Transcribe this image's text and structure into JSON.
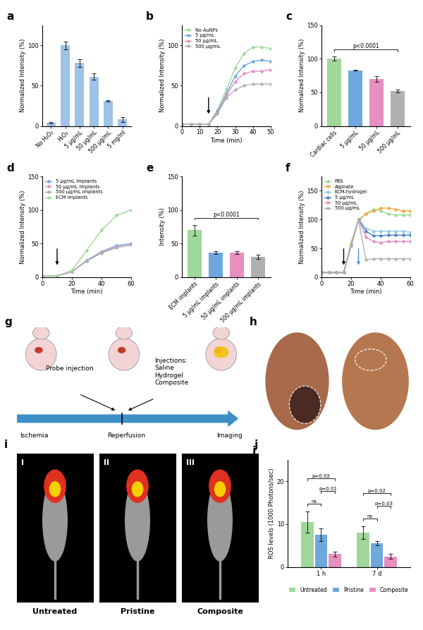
{
  "chart_data": [
    {
      "panel": "a",
      "type": "bar",
      "categories": [
        "No H₂O₂",
        "H₂O₂",
        "5 μg/mL",
        "50 μg/mL",
        "500 μg/mL",
        "5 mg/ml"
      ],
      "values": [
        4,
        100,
        78,
        61,
        31,
        8
      ],
      "errors": [
        1,
        5,
        5,
        4,
        1,
        3
      ],
      "colors": [
        "#9dc3e6",
        "#9dc3e6",
        "#9dc3e6",
        "#9dc3e6",
        "#9dc3e6",
        "#9dc3e6"
      ],
      "y_label": "Normalized Intensity (%)",
      "ylim": [
        0,
        125
      ],
      "yticks": [
        0,
        50,
        100
      ]
    },
    {
      "panel": "b",
      "type": "line",
      "x_label": "Time (min)",
      "y_label": "Normalized Intensity (%)",
      "x": [
        0,
        5,
        10,
        15,
        20,
        25,
        30,
        35,
        40,
        45,
        50
      ],
      "xlim": [
        0,
        50
      ],
      "xticks": [
        0,
        10,
        20,
        30,
        40,
        50
      ],
      "ylim": [
        0,
        125
      ],
      "yticks": [
        0,
        50,
        100
      ],
      "legend": "upper left",
      "marker": "o",
      "arrows": [
        {
          "x": 15,
          "color": "#000000"
        }
      ],
      "series": [
        {
          "name": "No AuNPs",
          "color": "#9fd89a",
          "values": [
            2,
            2,
            2,
            2,
            20,
            45,
            72,
            90,
            98,
            98,
            96
          ]
        },
        {
          "name": "5 μg/mL",
          "color": "#6fa8dc",
          "values": [
            2,
            2,
            2,
            2,
            18,
            40,
            62,
            75,
            80,
            82,
            80
          ]
        },
        {
          "name": "50 μg/mL",
          "color": "#e68fc0",
          "values": [
            2,
            2,
            2,
            2,
            16,
            38,
            55,
            65,
            68,
            68,
            70
          ]
        },
        {
          "name": "500 μg/mL",
          "color": "#b0b0b0",
          "values": [
            2,
            2,
            2,
            2,
            15,
            35,
            45,
            50,
            52,
            52,
            52
          ]
        }
      ]
    },
    {
      "panel": "c",
      "type": "bar",
      "categories": [
        "Cardiac cells",
        "5 μg/mL",
        "50 μg/mL",
        "500 μg/mL"
      ],
      "values": [
        100,
        83,
        70,
        52
      ],
      "errors": [
        3,
        1,
        4,
        2
      ],
      "colors": [
        "#9fd89a",
        "#6fa8dc",
        "#e68fc0",
        "#b0b0b0"
      ],
      "y_label": "Normalized Intensity (%)",
      "ylim": [
        0,
        150
      ],
      "yticks": [
        0,
        50,
        100,
        150
      ],
      "annotations": [
        {
          "text": "p<0.0001",
          "between": [
            "Cardiac cells",
            "500 μg/mL"
          ]
        }
      ]
    },
    {
      "panel": "d",
      "type": "line",
      "x_label": "Time (min)",
      "y_label": "Normalized Intensity (%)",
      "x": [
        0,
        10,
        20,
        30,
        40,
        50,
        60
      ],
      "xlim": [
        0,
        60
      ],
      "xticks": [
        0,
        20,
        40,
        60
      ],
      "ylim": [
        0,
        150
      ],
      "yticks": [
        0,
        50,
        100,
        150
      ],
      "legend": "upper left",
      "marker": "o",
      "arrows": [
        {
          "x": 10,
          "color": "#000000"
        }
      ],
      "series": [
        {
          "name": "5 μg/mL implants",
          "color": "#6fa8dc",
          "values": [
            2,
            2,
            8,
            25,
            38,
            47,
            50
          ]
        },
        {
          "name": "50 μg/mL implants",
          "color": "#e68fc0",
          "values": [
            2,
            2,
            8,
            24,
            37,
            45,
            48
          ]
        },
        {
          "name": "500 μg/mL implants",
          "color": "#b0b0b0",
          "values": [
            2,
            2,
            8,
            24,
            36,
            44,
            48
          ]
        },
        {
          "name": "ECM implants",
          "color": "#9fd89a",
          "values": [
            2,
            2,
            10,
            40,
            70,
            92,
            100
          ]
        }
      ]
    },
    {
      "panel": "e",
      "type": "bar",
      "categories": [
        "ECM implants",
        "5 μg/mL implants",
        "50 μg/mL implants",
        "500 μg/mL implants"
      ],
      "values": [
        70,
        37,
        37,
        30
      ],
      "errors": [
        8,
        2,
        2,
        3
      ],
      "colors": [
        "#9fd89a",
        "#6fa8dc",
        "#e68fc0",
        "#b0b0b0"
      ],
      "y_label": "Intensity (%)",
      "ylim": [
        0,
        150
      ],
      "yticks": [
        0,
        50,
        100,
        150
      ],
      "annotations": [
        {
          "text": "p<0.0001",
          "between": [
            "ECM implants",
            "500 μg/mL implants"
          ]
        }
      ]
    },
    {
      "panel": "f",
      "type": "line",
      "x_label": "Time (min)",
      "y_label": "Normalized Intensity (%)",
      "x": [
        0,
        5,
        10,
        15,
        20,
        25,
        30,
        35,
        40,
        45,
        50,
        55,
        60
      ],
      "xlim": [
        0,
        60
      ],
      "xticks": [
        0,
        20,
        40,
        60
      ],
      "ylim": [
        0,
        175
      ],
      "yticks": [
        0,
        50,
        100,
        150
      ],
      "legend": "upper left",
      "marker": "o",
      "arrows": [
        {
          "x": 15,
          "color": "#000000"
        },
        {
          "x": 25,
          "color": "#4a90d9"
        }
      ],
      "series": [
        {
          "name": "PBS",
          "color": "#9fd89a",
          "values": [
            8,
            8,
            8,
            8,
            60,
            100,
            110,
            118,
            115,
            110,
            108,
            108,
            108
          ]
        },
        {
          "name": "Alginate",
          "color": "#f4a940",
          "values": [
            8,
            8,
            8,
            8,
            58,
            98,
            110,
            115,
            120,
            120,
            118,
            115,
            115
          ]
        },
        {
          "name": "ECM-hydrogel",
          "color": "#8ec9e8",
          "values": [
            8,
            8,
            8,
            8,
            55,
            100,
            85,
            80,
            80,
            80,
            80,
            80,
            78
          ]
        },
        {
          "name": "5 μg/mL",
          "color": "#4a7fc1",
          "values": [
            8,
            8,
            8,
            8,
            55,
            100,
            80,
            72,
            72,
            73,
            73,
            73,
            73
          ]
        },
        {
          "name": "50 μg/mL",
          "color": "#e68fc0",
          "values": [
            8,
            8,
            8,
            8,
            55,
            100,
            70,
            62,
            60,
            62,
            62,
            62,
            62
          ]
        },
        {
          "name": "500 μg/mL",
          "color": "#b0b0b0",
          "values": [
            8,
            8,
            8,
            8,
            55,
            100,
            30,
            32,
            32,
            32,
            32,
            32,
            32
          ]
        }
      ]
    },
    {
      "panel": "j",
      "type": "grouped_bar",
      "categories": [
        "1 h",
        "7 d"
      ],
      "y_label": "ROS levels (1000 Photons/sec)",
      "ylim": [
        0,
        25
      ],
      "yticks": [
        0,
        10,
        20
      ],
      "legend": "bottom",
      "series": [
        {
          "name": "Untreated",
          "color": "#9fd89a",
          "values": [
            10.5,
            8
          ],
          "errors": [
            2.5,
            1.5
          ]
        },
        {
          "name": "Pristine",
          "color": "#6fa8dc",
          "values": [
            7.5,
            5.5
          ],
          "errors": [
            1.5,
            0.5
          ]
        },
        {
          "name": "Composite",
          "color": "#e68fc0",
          "values": [
            3,
            2.5
          ],
          "errors": [
            0.5,
            0.5
          ]
        }
      ],
      "annotations": [
        {
          "group": "1 h",
          "between": [
            "Untreated",
            "Pristine"
          ],
          "text": "ns"
        },
        {
          "group": "1 h",
          "between": [
            "Pristine",
            "Composite"
          ],
          "text": "p=0.01"
        },
        {
          "group": "1 h",
          "between": [
            "Untreated",
            "Composite"
          ],
          "text": "p=0.02"
        },
        {
          "group": "7 d",
          "between": [
            "Untreated",
            "Pristine"
          ],
          "text": "ns"
        },
        {
          "group": "7 d",
          "between": [
            "Pristine",
            "Composite"
          ],
          "text": "p=0.03"
        },
        {
          "group": "7 d",
          "between": [
            "Untreated",
            "Composite"
          ],
          "text": "p=0.02"
        }
      ]
    }
  ],
  "diagram": {
    "panel": "g",
    "timeline": [
      "Ischemia",
      "Reperfusion",
      "Imaging"
    ],
    "probe": "Probe injection",
    "injections": [
      "Injections:",
      "Saline",
      "Hydrogel",
      "Composite"
    ]
  },
  "photos": {
    "panel": "h"
  },
  "imaging": {
    "panel": "i",
    "images": [
      "I",
      "II",
      "III"
    ],
    "captions": [
      "Untreated",
      "Pristine",
      "Composite"
    ]
  }
}
